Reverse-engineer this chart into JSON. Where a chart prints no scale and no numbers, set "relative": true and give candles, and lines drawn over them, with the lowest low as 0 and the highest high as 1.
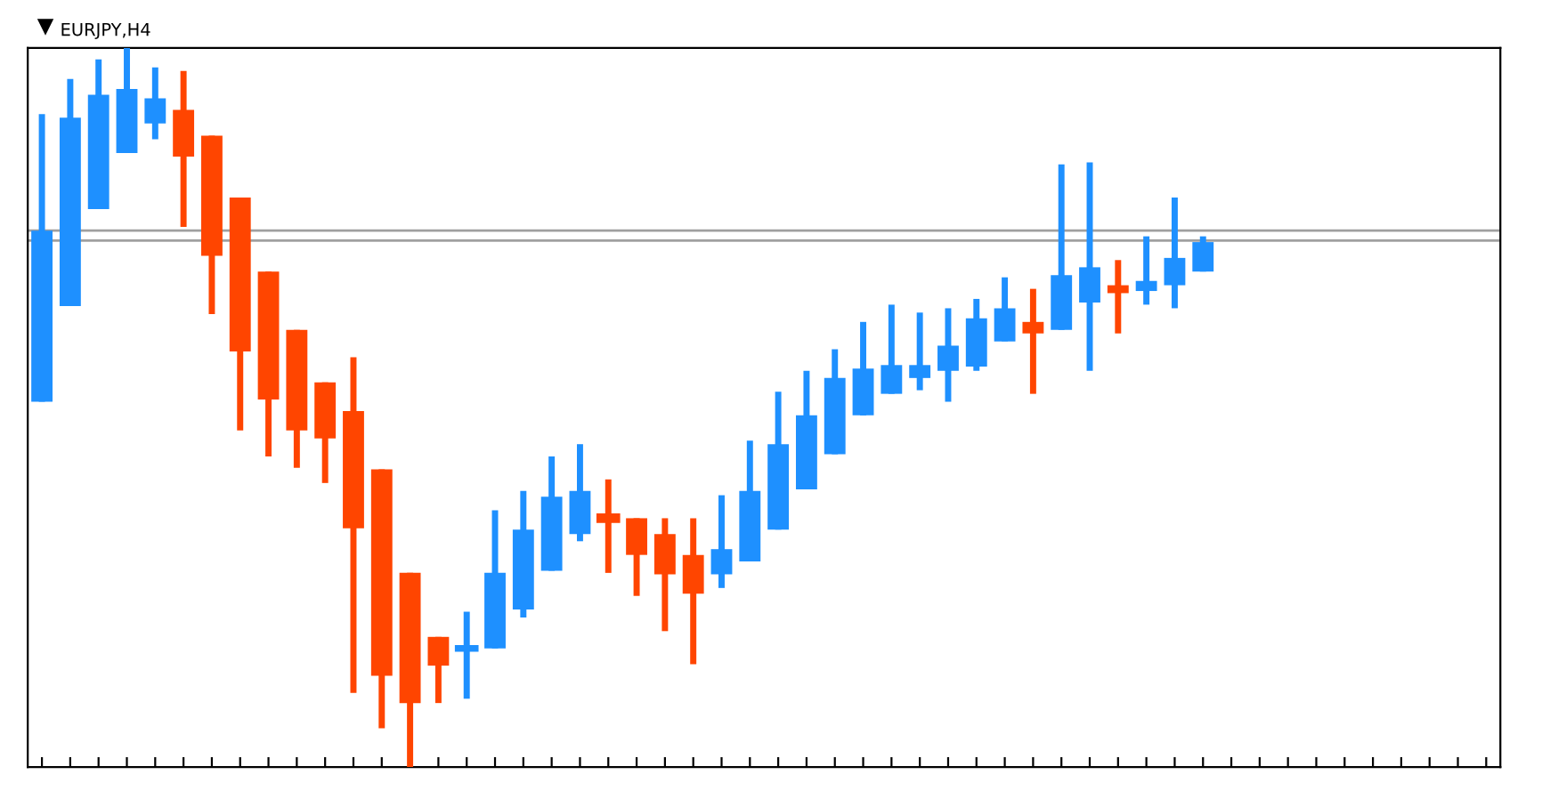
{
  "chart_data": {
    "type": "candlestick",
    "title": "EURJPY,H4",
    "relative": true,
    "grid": false,
    "categories": [
      null,
      null,
      null,
      null,
      null,
      null,
      null,
      null,
      null,
      null,
      null,
      null,
      null,
      null,
      null,
      null,
      null,
      null,
      null,
      null,
      null,
      null,
      null,
      null,
      null,
      null,
      null,
      null,
      null,
      null,
      null,
      null,
      null,
      null,
      null,
      null,
      null,
      null,
      null,
      null,
      null,
      null,
      null,
      null,
      null,
      null,
      null,
      null,
      null,
      null,
      null,
      null
    ],
    "ohlc": [
      [
        0.508,
        0.908,
        0.508,
        0.746
      ],
      [
        0.641,
        0.957,
        0.641,
        0.903
      ],
      [
        0.776,
        0.984,
        0.776,
        0.935
      ],
      [
        0.854,
        1.0,
        0.854,
        0.943
      ],
      [
        0.895,
        0.973,
        0.873,
        0.93
      ],
      [
        0.914,
        0.968,
        0.751,
        0.849
      ],
      [
        0.878,
        0.878,
        0.63,
        0.711
      ],
      [
        0.792,
        0.792,
        0.468,
        0.578
      ],
      [
        0.689,
        0.689,
        0.432,
        0.511
      ],
      [
        0.608,
        0.608,
        0.416,
        0.468
      ],
      [
        0.535,
        0.535,
        0.395,
        0.457
      ],
      [
        0.495,
        0.57,
        0.103,
        0.332
      ],
      [
        0.414,
        0.414,
        0.054,
        0.127
      ],
      [
        0.27,
        0.27,
        0.0,
        0.089
      ],
      [
        0.181,
        0.181,
        0.089,
        0.141
      ],
      [
        0.162,
        0.216,
        0.095,
        0.168
      ],
      [
        0.165,
        0.357,
        0.165,
        0.27
      ],
      [
        0.219,
        0.384,
        0.208,
        0.33
      ],
      [
        0.273,
        0.432,
        0.273,
        0.376
      ],
      [
        0.324,
        0.449,
        0.314,
        0.384
      ],
      [
        0.351,
        0.4,
        0.27,
        0.341
      ],
      [
        0.346,
        0.346,
        0.238,
        0.295
      ],
      [
        0.324,
        0.346,
        0.189,
        0.268
      ],
      [
        0.295,
        0.346,
        0.143,
        0.241
      ],
      [
        0.268,
        0.378,
        0.249,
        0.303
      ],
      [
        0.286,
        0.454,
        0.286,
        0.384
      ],
      [
        0.33,
        0.522,
        0.33,
        0.449
      ],
      [
        0.386,
        0.551,
        0.386,
        0.489
      ],
      [
        0.435,
        0.581,
        0.435,
        0.541
      ],
      [
        0.489,
        0.619,
        0.489,
        0.554
      ],
      [
        0.519,
        0.643,
        0.519,
        0.559
      ],
      [
        0.541,
        0.632,
        0.524,
        0.559
      ],
      [
        0.551,
        0.638,
        0.508,
        0.586
      ],
      [
        0.557,
        0.651,
        0.551,
        0.624
      ],
      [
        0.592,
        0.681,
        0.592,
        0.638
      ],
      [
        0.619,
        0.665,
        0.519,
        0.603
      ],
      [
        0.608,
        0.838,
        0.608,
        0.684
      ],
      [
        0.646,
        0.841,
        0.551,
        0.695
      ],
      [
        0.67,
        0.705,
        0.603,
        0.659
      ],
      [
        0.662,
        0.738,
        0.643,
        0.676
      ],
      [
        0.67,
        0.792,
        0.638,
        0.708
      ],
      [
        0.689,
        0.738,
        0.689,
        0.73
      ],
      null,
      null,
      null,
      null,
      null,
      null,
      null,
      null,
      null,
      null
    ],
    "colors": [
      "#1e90ff",
      "#1e90ff",
      "#1e90ff",
      "#1e90ff",
      "#1e90ff",
      "#ff4500",
      "#ff4500",
      "#ff4500",
      "#ff4500",
      "#ff4500",
      "#ff4500",
      "#ff4500",
      "#ff4500",
      "#ff4500",
      "#ff4500",
      "#1e90ff",
      "#1e90ff",
      "#1e90ff",
      "#1e90ff",
      "#1e90ff",
      "#ff4500",
      "#ff4500",
      "#ff4500",
      "#ff4500",
      "#1e90ff",
      "#1e90ff",
      "#1e90ff",
      "#1e90ff",
      "#1e90ff",
      "#1e90ff",
      "#1e90ff",
      "#1e90ff",
      "#1e90ff",
      "#1e90ff",
      "#1e90ff",
      "#ff4500",
      "#1e90ff",
      "#1e90ff",
      "#ff4500",
      "#1e90ff",
      "#1e90ff",
      "#1e90ff",
      null,
      null,
      null,
      null,
      null,
      null,
      null,
      null,
      null,
      null
    ],
    "ref_lines": [
      {
        "axis": "y",
        "value": 0.746,
        "color": "#a0a0a0"
      },
      {
        "axis": "y",
        "value": 0.732,
        "color": "#a0a0a0"
      }
    ]
  }
}
